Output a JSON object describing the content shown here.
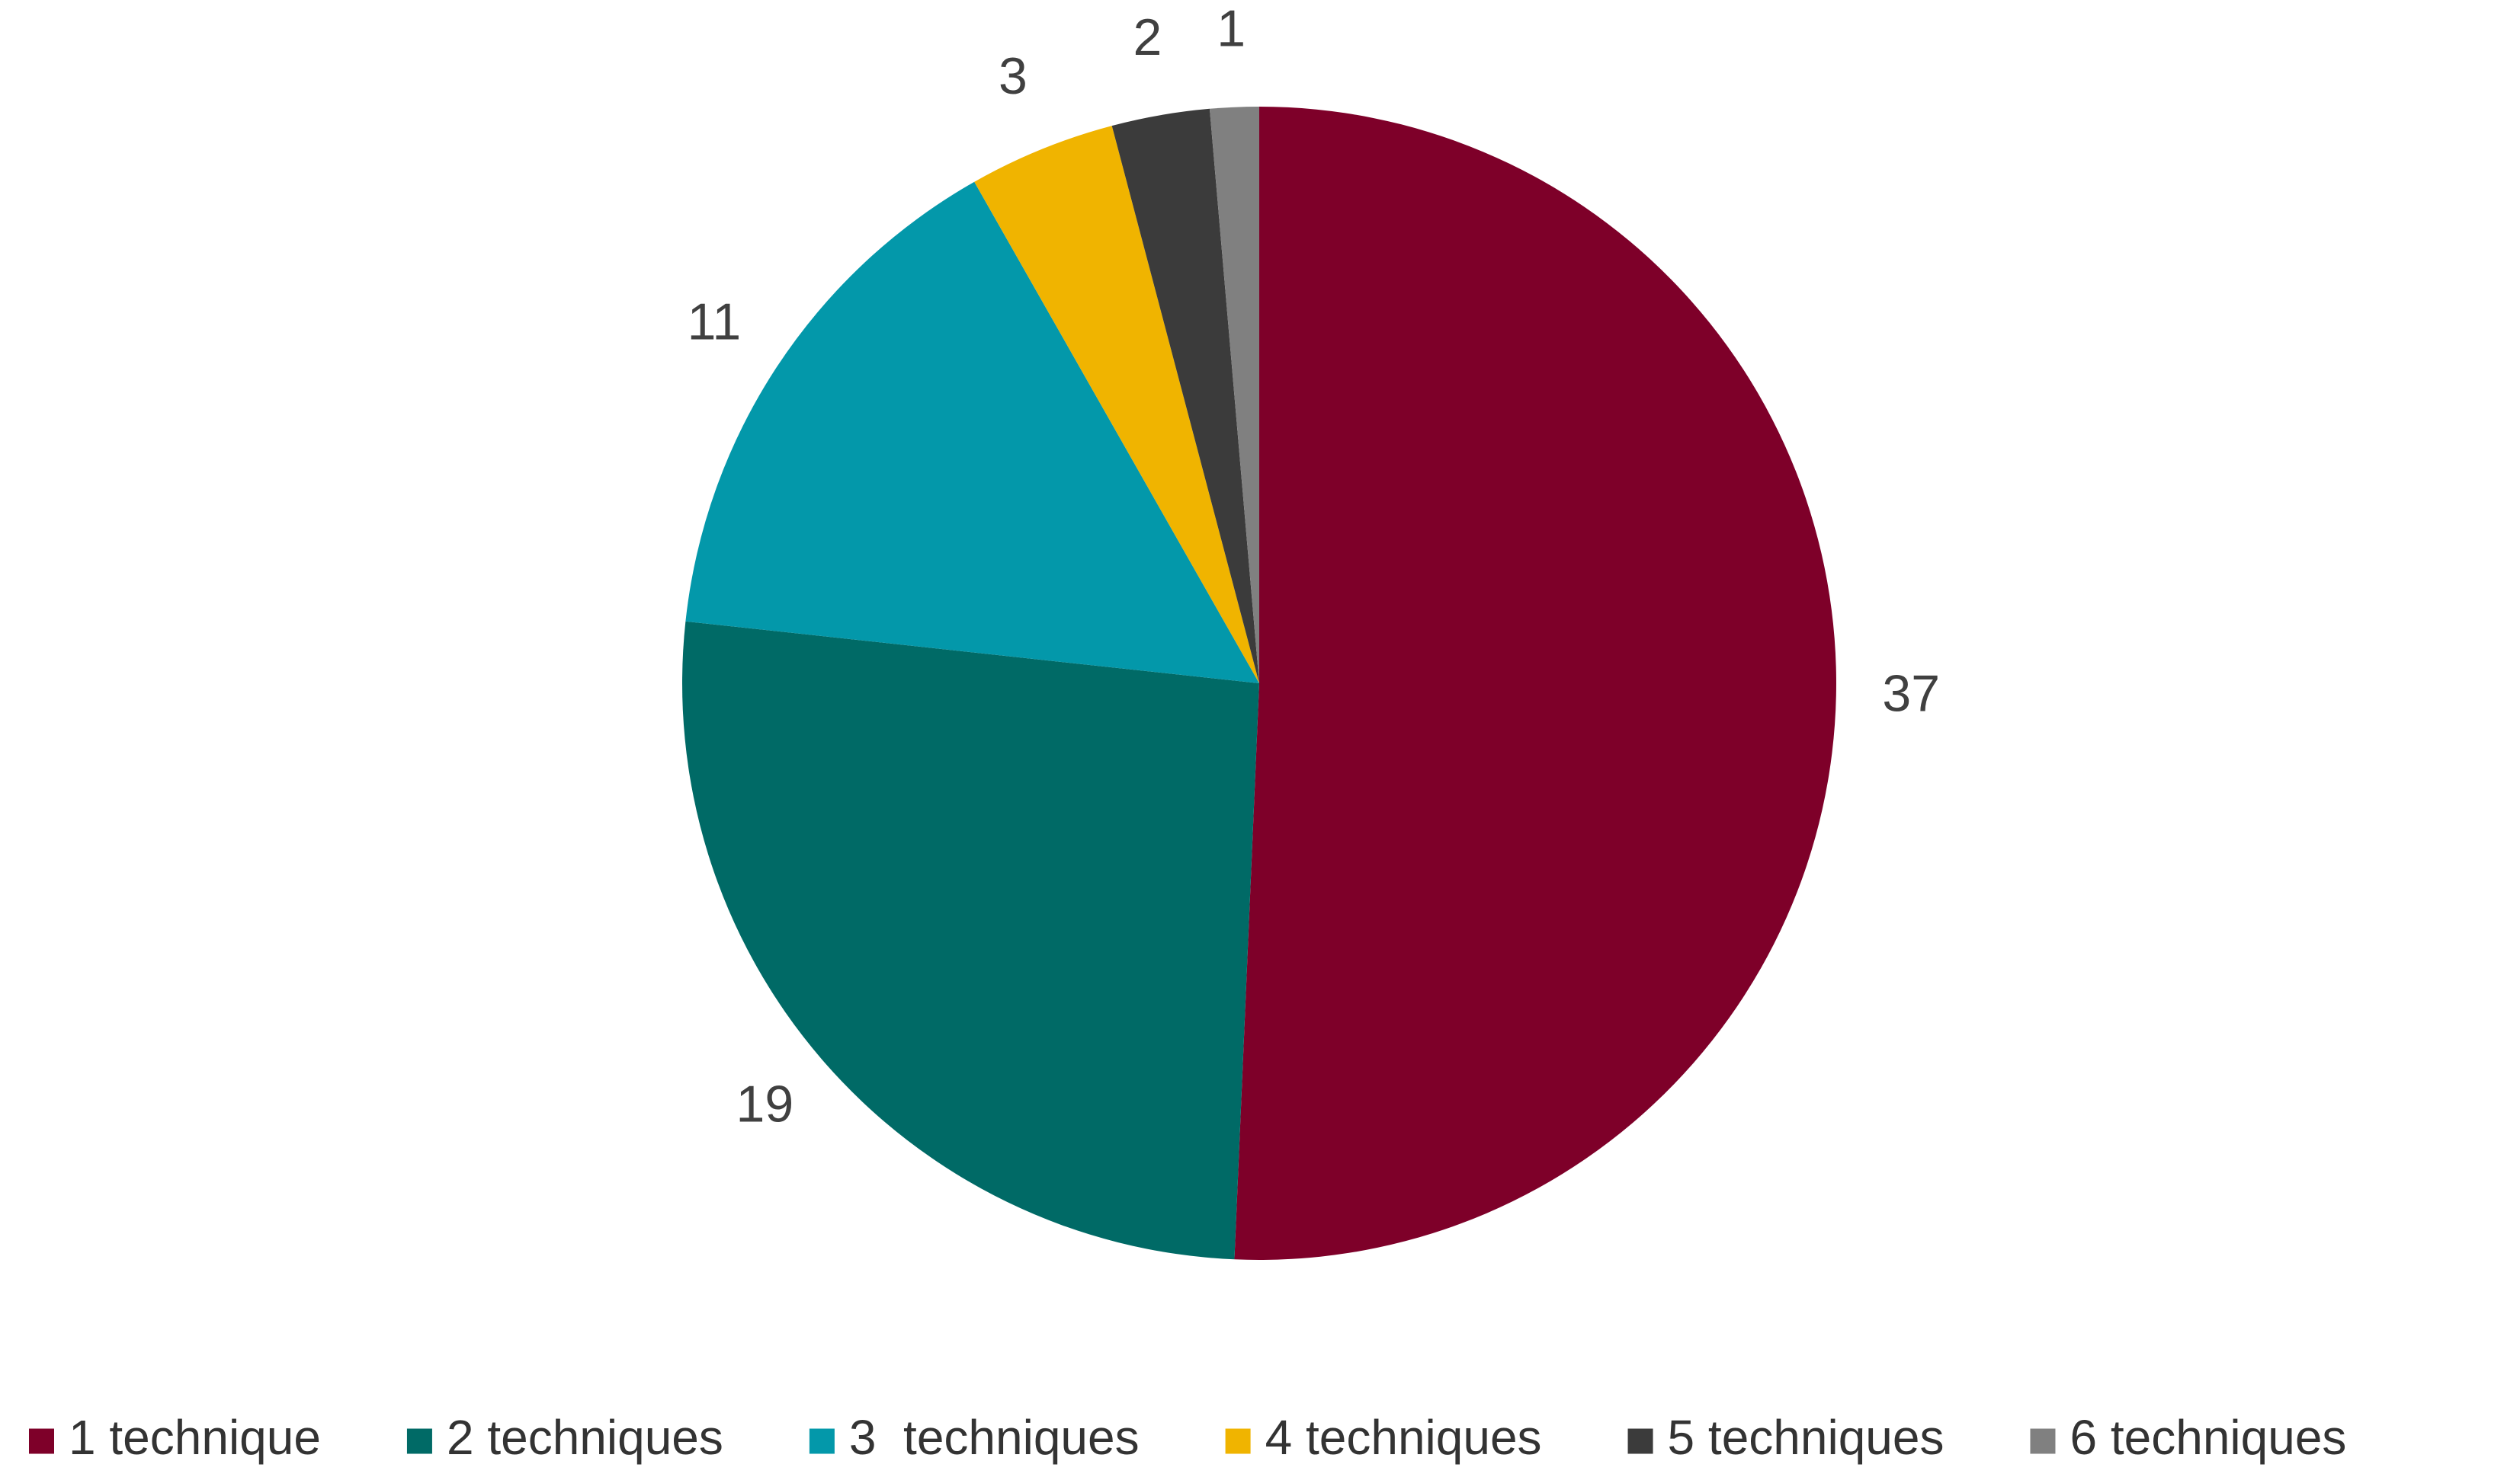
{
  "chart_data": {
    "type": "pie",
    "categories": [
      "1 technique",
      "2 techniques",
      "3  techniques",
      "4 techniques",
      "5 techniques",
      "6 techniques"
    ],
    "values": [
      37,
      19,
      11,
      3,
      2,
      1
    ],
    "colors": [
      "#7e0029",
      "#006a66",
      "#0398aa",
      "#f0b400",
      "#3b3b3b",
      "#808080"
    ],
    "legend": "bottom"
  }
}
